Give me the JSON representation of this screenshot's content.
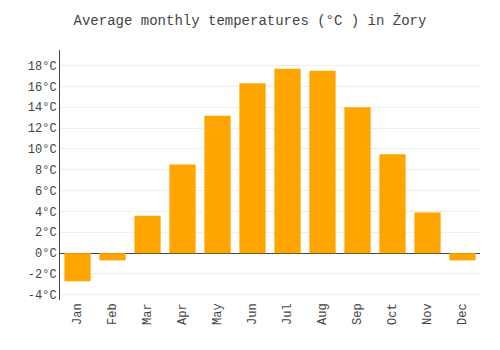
{
  "chart_data": {
    "type": "bar",
    "title": "Average monthly temperatures (°C ) in Żory",
    "categories": [
      "Jan",
      "Feb",
      "Mar",
      "Apr",
      "May",
      "Jun",
      "Jul",
      "Aug",
      "Sep",
      "Oct",
      "Nov",
      "Dec"
    ],
    "values": [
      -2.7,
      -0.7,
      3.6,
      8.5,
      13.2,
      16.3,
      17.7,
      17.5,
      14.0,
      9.5,
      3.9,
      -0.7
    ],
    "color": "#FFA500",
    "ylim": [
      -4.5,
      19.5
    ],
    "yticks": [
      {
        "value": -4,
        "label": "-4°C"
      },
      {
        "value": -2,
        "label": "-2°C"
      },
      {
        "value": 0,
        "label": "0°C"
      },
      {
        "value": 2,
        "label": "2°C"
      },
      {
        "value": 4,
        "label": "4°C"
      },
      {
        "value": 6,
        "label": "6°C"
      },
      {
        "value": 8,
        "label": "8°C"
      },
      {
        "value": 10,
        "label": "10°C"
      },
      {
        "value": 12,
        "label": "12°C"
      },
      {
        "value": 14,
        "label": "14°C"
      },
      {
        "value": 16,
        "label": "16°C"
      },
      {
        "value": 18,
        "label": "18°C"
      }
    ],
    "grid": true
  }
}
